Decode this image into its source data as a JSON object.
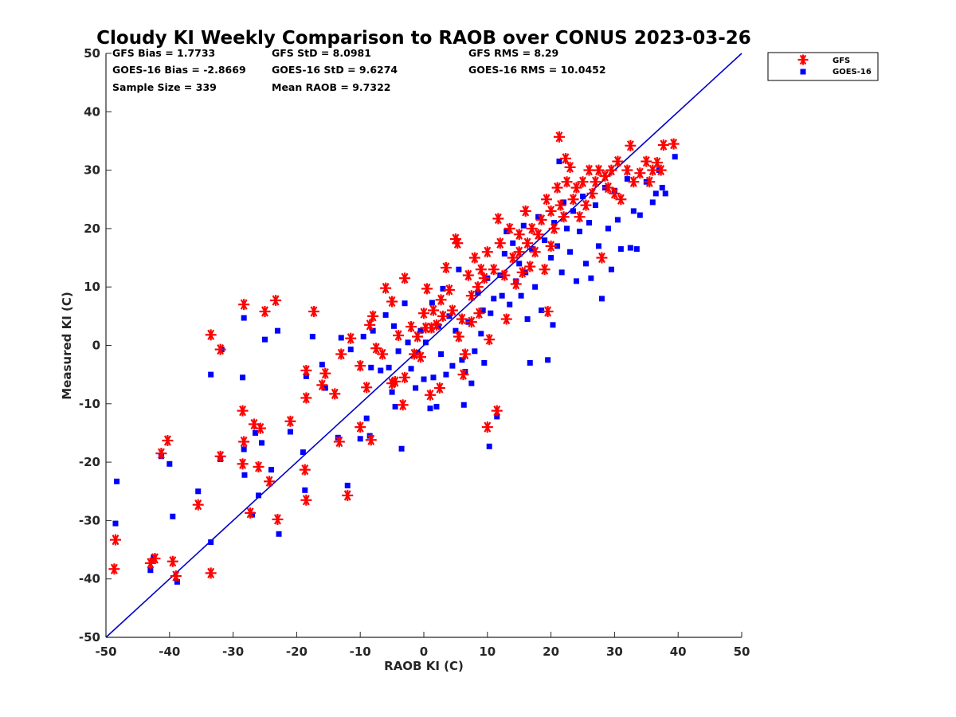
{
  "chart_data": {
    "type": "scatter",
    "title": "Cloudy KI Weekly Comparison to RAOB over CONUS 2023-03-26",
    "xlabel": "RAOB KI (C)",
    "ylabel": "Measured KI (C)",
    "xlim": [
      -50,
      50
    ],
    "ylim": [
      -50,
      50
    ],
    "xticks": [
      "-50",
      "-40",
      "-30",
      "-20",
      "-10",
      "0",
      "10",
      "20",
      "30",
      "40",
      "50"
    ],
    "yticks": [
      "-50",
      "-40",
      "-30",
      "-20",
      "-10",
      "0",
      "10",
      "20",
      "30",
      "40",
      "50"
    ],
    "grid": false,
    "legend_position": "outside-top-right",
    "reference_line": {
      "name": "1:1 line",
      "color": "#0000cc",
      "from": [
        -50,
        -50
      ],
      "to": [
        50,
        50
      ]
    },
    "stats": [
      [
        "GFS Bias = 1.7733",
        "GFS StD = 8.0981",
        "GFS RMS = 8.29"
      ],
      [
        "GOES-16 Bias = -2.8669",
        "GOES-16 StD = 9.6274",
        "GOES-16 RMS = 10.0452"
      ],
      [
        "Sample Size = 339",
        "Mean RAOB = 9.7322",
        ""
      ]
    ],
    "series": [
      {
        "name": "GFS",
        "marker": "asterisk",
        "color": "#ff0000",
        "points": [
          [
            -48.5,
            -33.3
          ],
          [
            -48.7,
            -38.3
          ],
          [
            -43,
            -37.3
          ],
          [
            -42.3,
            -36.5
          ],
          [
            -39.5,
            -37
          ],
          [
            -39,
            -39.5
          ],
          [
            -40.3,
            -16.3
          ],
          [
            -41.3,
            -18.5
          ],
          [
            -35.5,
            -27.3
          ],
          [
            -33.5,
            -39
          ],
          [
            -33.5,
            1.8
          ],
          [
            -32,
            -0.7
          ],
          [
            -32,
            -19
          ],
          [
            -28.5,
            -11.2
          ],
          [
            -28.3,
            -16.5
          ],
          [
            -28.5,
            -20.3
          ],
          [
            -28.3,
            7
          ],
          [
            -27.3,
            -28.7
          ],
          [
            -26.7,
            -13.5
          ],
          [
            -26,
            -20.8
          ],
          [
            -25.7,
            -14.2
          ],
          [
            -25,
            5.8
          ],
          [
            -24.3,
            -23.3
          ],
          [
            -23.3,
            7.7
          ],
          [
            -23,
            -29.8
          ],
          [
            -21,
            -13
          ],
          [
            -18.7,
            -21.3
          ],
          [
            -18.5,
            -26.5
          ],
          [
            -18.5,
            -9
          ],
          [
            -18.5,
            -4.3
          ],
          [
            -17.3,
            5.8
          ],
          [
            -16,
            -6.8
          ],
          [
            -15.5,
            -4.8
          ],
          [
            -14,
            -8.3
          ],
          [
            -13.3,
            -16.5
          ],
          [
            -13,
            -1.5
          ],
          [
            -12,
            -25.7
          ],
          [
            -11.5,
            1.2
          ],
          [
            -10,
            -14
          ],
          [
            -10,
            -3.5
          ],
          [
            -9,
            -7.2
          ],
          [
            -8.5,
            3.5
          ],
          [
            -8.3,
            -16.2
          ],
          [
            -8,
            5
          ],
          [
            -7.5,
            -0.5
          ],
          [
            -6.5,
            -1.5
          ],
          [
            -6,
            9.8
          ],
          [
            -5,
            7.5
          ],
          [
            -5,
            -6.5
          ],
          [
            -4.5,
            -6.2
          ],
          [
            -4,
            1.7
          ],
          [
            -3.3,
            -10.2
          ],
          [
            -3,
            11.5
          ],
          [
            -3,
            -5.5
          ],
          [
            -2,
            3.2
          ],
          [
            -1.5,
            -1.5
          ],
          [
            -1,
            1.5
          ],
          [
            -0.5,
            -2
          ],
          [
            0,
            5.5
          ],
          [
            0.3,
            3
          ],
          [
            0.5,
            9.7
          ],
          [
            1,
            -8.5
          ],
          [
            1.2,
            3
          ],
          [
            1.5,
            6
          ],
          [
            2,
            3.5
          ],
          [
            2.5,
            -7.3
          ],
          [
            2.7,
            7.8
          ],
          [
            3,
            5
          ],
          [
            3.5,
            13.3
          ],
          [
            4,
            9.5
          ],
          [
            4.5,
            6
          ],
          [
            5,
            18.2
          ],
          [
            5.3,
            17.5
          ],
          [
            5.5,
            1.5
          ],
          [
            6,
            4.5
          ],
          [
            6.2,
            -5
          ],
          [
            6.5,
            -1.5
          ],
          [
            7,
            12
          ],
          [
            7.5,
            8.5
          ],
          [
            7.5,
            4
          ],
          [
            8,
            15
          ],
          [
            8.5,
            10
          ],
          [
            8.7,
            5.5
          ],
          [
            9,
            13
          ],
          [
            9.5,
            11.5
          ],
          [
            10,
            16
          ],
          [
            10,
            -14
          ],
          [
            10.3,
            1
          ],
          [
            11,
            13
          ],
          [
            11.5,
            -11.2
          ],
          [
            11.7,
            21.7
          ],
          [
            12,
            17.5
          ],
          [
            12.7,
            12
          ],
          [
            13,
            4.5
          ],
          [
            13.5,
            20
          ],
          [
            14,
            15
          ],
          [
            14.5,
            10.5
          ],
          [
            15,
            19
          ],
          [
            15,
            16
          ],
          [
            15.5,
            12.5
          ],
          [
            16,
            23
          ],
          [
            16.3,
            17.5
          ],
          [
            16.7,
            13.5
          ],
          [
            17,
            20
          ],
          [
            17.5,
            16
          ],
          [
            18,
            19
          ],
          [
            18.5,
            21.5
          ],
          [
            19,
            13
          ],
          [
            19.3,
            25
          ],
          [
            19.5,
            5.8
          ],
          [
            20,
            23
          ],
          [
            20,
            17
          ],
          [
            20.5,
            20
          ],
          [
            21,
            27
          ],
          [
            21.3,
            35.7
          ],
          [
            21.5,
            24
          ],
          [
            22,
            22
          ],
          [
            22.3,
            32
          ],
          [
            22.5,
            28
          ],
          [
            23,
            30.5
          ],
          [
            23.5,
            25
          ],
          [
            24,
            27
          ],
          [
            24.5,
            22
          ],
          [
            25,
            28
          ],
          [
            25.5,
            24
          ],
          [
            26,
            30
          ],
          [
            26.5,
            26
          ],
          [
            27,
            28
          ],
          [
            27.5,
            30
          ],
          [
            28,
            15
          ],
          [
            28.5,
            29
          ],
          [
            29,
            27
          ],
          [
            29.5,
            30
          ],
          [
            30,
            26
          ],
          [
            30.5,
            31.5
          ],
          [
            31,
            25
          ],
          [
            32,
            30
          ],
          [
            32.5,
            34.2
          ],
          [
            33,
            28
          ],
          [
            34,
            29.5
          ],
          [
            35,
            31.5
          ],
          [
            35.5,
            28
          ],
          [
            36,
            30
          ],
          [
            36.7,
            31.3
          ],
          [
            37.3,
            30
          ],
          [
            37.7,
            34.3
          ],
          [
            39.3,
            34.5
          ]
        ]
      },
      {
        "name": "GOES-16",
        "marker": "square",
        "color": "#0000ff",
        "points": [
          [
            -48.3,
            -23.3
          ],
          [
            -48.5,
            -30.5
          ],
          [
            -43,
            -38.5
          ],
          [
            -42.5,
            -36.3
          ],
          [
            -41.3,
            -19
          ],
          [
            -40,
            -20.3
          ],
          [
            -39.5,
            -29.3
          ],
          [
            -38.8,
            -40.5
          ],
          [
            -35.5,
            -25
          ],
          [
            -33.5,
            -5
          ],
          [
            -33.5,
            -33.7
          ],
          [
            -32,
            -19.5
          ],
          [
            -31.8,
            -0.7
          ],
          [
            -28.5,
            -5.5
          ],
          [
            -28.3,
            4.7
          ],
          [
            -28.3,
            -17.8
          ],
          [
            -28.2,
            -22.2
          ],
          [
            -27,
            -29
          ],
          [
            -26.5,
            -15
          ],
          [
            -26,
            -25.7
          ],
          [
            -25.5,
            -16.7
          ],
          [
            -25,
            1
          ],
          [
            -24,
            -21.3
          ],
          [
            -23,
            2.5
          ],
          [
            -22.8,
            -32.3
          ],
          [
            -21,
            -14.8
          ],
          [
            -19,
            -18.3
          ],
          [
            -18.7,
            -24.8
          ],
          [
            -18.5,
            -5.3
          ],
          [
            -17.5,
            1.5
          ],
          [
            -16,
            -3.3
          ],
          [
            -15.5,
            -7.3
          ],
          [
            -13.5,
            -15.8
          ],
          [
            -13,
            1.3
          ],
          [
            -12,
            -24
          ],
          [
            -11.5,
            -0.7
          ],
          [
            -10,
            -16
          ],
          [
            -9.5,
            1.5
          ],
          [
            -9,
            -12.5
          ],
          [
            -8.5,
            -15.5
          ],
          [
            -8.3,
            -3.8
          ],
          [
            -8,
            2.5
          ],
          [
            -6.8,
            -4.3
          ],
          [
            -6,
            5.2
          ],
          [
            -5.5,
            -3.8
          ],
          [
            -5,
            -8
          ],
          [
            -4.7,
            3.3
          ],
          [
            -4.5,
            -10.5
          ],
          [
            -4,
            -1
          ],
          [
            -3.5,
            -17.7
          ],
          [
            -3,
            7.2
          ],
          [
            -2.5,
            0.5
          ],
          [
            -2,
            -4
          ],
          [
            -1.3,
            -7.3
          ],
          [
            -1,
            -1.3
          ],
          [
            -0.5,
            2.5
          ],
          [
            0,
            -5.8
          ],
          [
            0.3,
            0.5
          ],
          [
            1,
            -10.8
          ],
          [
            1.3,
            7.3
          ],
          [
            1.5,
            -5.5
          ],
          [
            2,
            -10.5
          ],
          [
            2.3,
            3.3
          ],
          [
            2.7,
            -1.5
          ],
          [
            3,
            9.7
          ],
          [
            3.5,
            -5
          ],
          [
            4,
            5
          ],
          [
            4.5,
            -3.5
          ],
          [
            5,
            2.5
          ],
          [
            5.5,
            13
          ],
          [
            6,
            -2.5
          ],
          [
            6.3,
            -10.2
          ],
          [
            6.5,
            -4.5
          ],
          [
            7,
            4
          ],
          [
            7.5,
            -6.5
          ],
          [
            8,
            -1
          ],
          [
            8.5,
            9
          ],
          [
            9,
            2
          ],
          [
            9.3,
            6
          ],
          [
            9.5,
            -3
          ],
          [
            10,
            11.5
          ],
          [
            10.3,
            -17.3
          ],
          [
            10.5,
            5.5
          ],
          [
            11,
            8
          ],
          [
            11.5,
            -12.2
          ],
          [
            12,
            12
          ],
          [
            12.3,
            8.5
          ],
          [
            12.7,
            15.7
          ],
          [
            13,
            19.5
          ],
          [
            13.5,
            7
          ],
          [
            14,
            17.5
          ],
          [
            14.5,
            11
          ],
          [
            15,
            14
          ],
          [
            15.3,
            8.5
          ],
          [
            15.7,
            20.5
          ],
          [
            16,
            12.5
          ],
          [
            16.3,
            4.5
          ],
          [
            16.7,
            -3
          ],
          [
            17,
            16.5
          ],
          [
            17.5,
            10
          ],
          [
            18,
            22
          ],
          [
            18.5,
            6
          ],
          [
            19,
            18
          ],
          [
            19.5,
            -2.5
          ],
          [
            20,
            15
          ],
          [
            20.3,
            3.5
          ],
          [
            20.5,
            21
          ],
          [
            21,
            17
          ],
          [
            21.3,
            31.5
          ],
          [
            21.7,
            12.5
          ],
          [
            22,
            24.5
          ],
          [
            22.5,
            20
          ],
          [
            23,
            16
          ],
          [
            23.5,
            23
          ],
          [
            24,
            11
          ],
          [
            24.5,
            19.5
          ],
          [
            25,
            25.5
          ],
          [
            25.5,
            14
          ],
          [
            26,
            21
          ],
          [
            26.3,
            11.5
          ],
          [
            27,
            24
          ],
          [
            27.5,
            17
          ],
          [
            28,
            8
          ],
          [
            28.5,
            27
          ],
          [
            29,
            20
          ],
          [
            29.5,
            13
          ],
          [
            30,
            26.5
          ],
          [
            30.5,
            21.5
          ],
          [
            31,
            16.5
          ],
          [
            32,
            28.5
          ],
          [
            32.5,
            16.7
          ],
          [
            33,
            23
          ],
          [
            33.5,
            16.5
          ],
          [
            34,
            22.3
          ],
          [
            35,
            28
          ],
          [
            36,
            24.5
          ],
          [
            36.5,
            26
          ],
          [
            37,
            30
          ],
          [
            37.5,
            27
          ],
          [
            38,
            26
          ],
          [
            39.5,
            32.3
          ]
        ]
      }
    ]
  }
}
